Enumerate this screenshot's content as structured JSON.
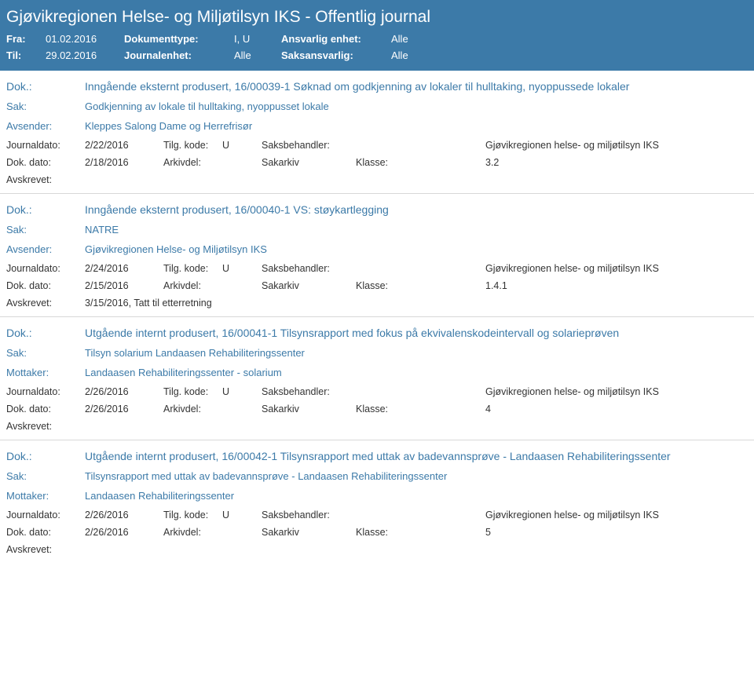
{
  "header": {
    "title": "Gjøvikregionen Helse- og Miljøtilsyn IKS - Offentlig journal",
    "fra_label": "Fra:",
    "fra_value": "01.02.2016",
    "til_label": "Til:",
    "til_value": "29.02.2016",
    "doktype_label": "Dokumenttype:",
    "doktype_value": "I, U",
    "journalenhet_label": "Journalenhet:",
    "journalenhet_value": "Alle",
    "ansvarlig_label": "Ansvarlig enhet:",
    "ansvarlig_value": "Alle",
    "saksansvarlig_label": "Saksansvarlig:",
    "saksansvarlig_value": "Alle"
  },
  "labels": {
    "dok": "Dok.:",
    "sak": "Sak:",
    "avsender": "Avsender:",
    "mottaker": "Mottaker:",
    "journaldato": "Journaldato:",
    "tilgkode": "Tilg. kode:",
    "saksbehandler": "Saksbehandler:",
    "dokdato": "Dok. dato:",
    "arkivdel": "Arkivdel:",
    "klasse": "Klasse:",
    "avskrevet": "Avskrevet:"
  },
  "entries": [
    {
      "dok": "Inngående eksternt produsert, 16/00039-1 Søknad om godkjenning av lokaler til hulltaking, nyoppussede lokaler",
      "sak": "Godkjenning av lokale til hulltaking, nyoppusset lokale",
      "party_label": "Avsender:",
      "party": "Kleppes Salong Dame og Herrefrisør",
      "journaldato": "2/22/2016",
      "tilgkode": "U",
      "saksbehandler": "Gjøvikregionen helse- og miljøtilsyn IKS",
      "dokdato": "2/18/2016",
      "arkivdel": "Sakarkiv",
      "klasse": "3.2",
      "avskrevet": ""
    },
    {
      "dok": "Inngående eksternt produsert, 16/00040-1 VS: støykartlegging",
      "sak": "NATRE",
      "party_label": "Avsender:",
      "party": "Gjøvikregionen Helse- og Miljøtilsyn IKS",
      "journaldato": "2/24/2016",
      "tilgkode": "U",
      "saksbehandler": "Gjøvikregionen helse- og miljøtilsyn IKS",
      "dokdato": "2/15/2016",
      "arkivdel": "Sakarkiv",
      "klasse": "1.4.1",
      "avskrevet": "3/15/2016, Tatt til etterretning"
    },
    {
      "dok": "Utgående internt produsert, 16/00041-1 Tilsynsrapport med fokus på ekvivalenskodeintervall og solarieprøven",
      "sak": "Tilsyn solarium Landaasen Rehabiliteringssenter",
      "party_label": "Mottaker:",
      "party": "Landaasen Rehabiliteringssenter - solarium",
      "journaldato": "2/26/2016",
      "tilgkode": "U",
      "saksbehandler": "Gjøvikregionen helse- og miljøtilsyn IKS",
      "dokdato": "2/26/2016",
      "arkivdel": "Sakarkiv",
      "klasse": "4",
      "avskrevet": ""
    },
    {
      "dok": "Utgående internt produsert, 16/00042-1 Tilsynsrapport med uttak av badevannsprøve - Landaasen Rehabiliteringssenter",
      "sak": "Tilsynsrapport med uttak av badevannsprøve - Landaasen Rehabiliteringssenter",
      "party_label": "Mottaker:",
      "party": "Landaasen Rehabiliteringssenter",
      "journaldato": "2/26/2016",
      "tilgkode": "U",
      "saksbehandler": "Gjøvikregionen helse- og miljøtilsyn IKS",
      "dokdato": "2/26/2016",
      "arkivdel": "Sakarkiv",
      "klasse": "5",
      "avskrevet": ""
    }
  ],
  "styling": {
    "header_bg": "#3c7aa8",
    "header_text": "#ffffff",
    "link_color": "#3c7aa8",
    "body_text": "#333333",
    "divider": "#d8d8d8",
    "title_fontsize": 21,
    "body_fontsize": 13,
    "meta_fontsize": 12.5
  }
}
